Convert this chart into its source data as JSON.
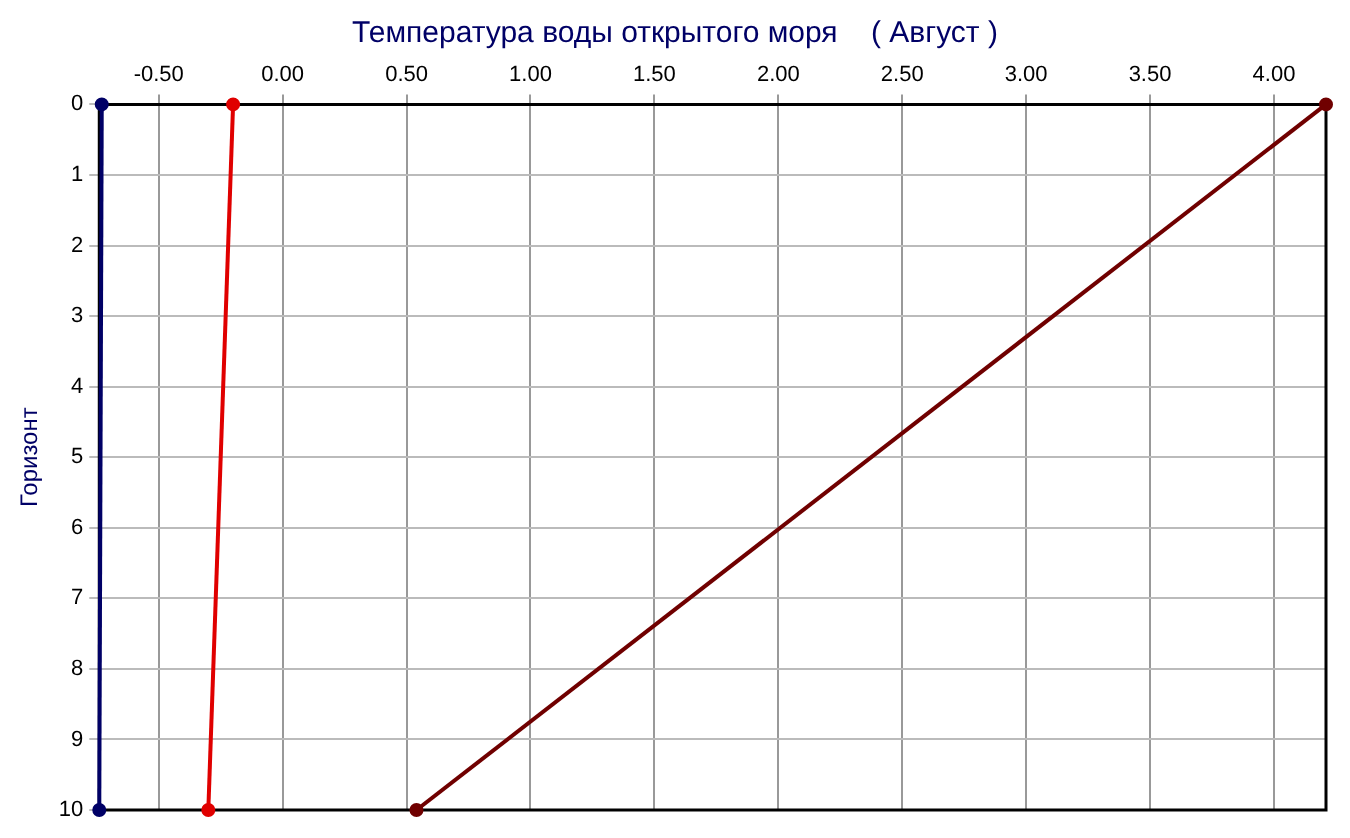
{
  "chart_data": {
    "type": "line",
    "title": "Температура воды открытого моря    ( Август )",
    "ylabel": "Горизонт",
    "series": [
      {
        "color": "#000066",
        "x": [
          -0.73,
          -0.74
        ],
        "values": [
          0,
          10
        ]
      },
      {
        "color": "#e00000",
        "x": [
          -0.2,
          -0.3
        ],
        "values": [
          0,
          10
        ]
      },
      {
        "color": "#700000",
        "x": [
          4.21,
          0.54
        ],
        "values": [
          0,
          10
        ]
      }
    ],
    "xlim": [
      -0.74,
      4.21
    ],
    "xticks": [
      {
        "value": -0.5,
        "label": "-0.50"
      },
      {
        "value": 0,
        "label": "0.00"
      },
      {
        "value": 0.5,
        "label": "0.50"
      },
      {
        "value": 1,
        "label": "1.00"
      },
      {
        "value": 1.5,
        "label": "1.50"
      },
      {
        "value": 2,
        "label": "2.00"
      },
      {
        "value": 2.5,
        "label": "2.50"
      },
      {
        "value": 3,
        "label": "3.00"
      },
      {
        "value": 3.5,
        "label": "3.50"
      },
      {
        "value": 4,
        "label": "4.00"
      }
    ],
    "ylim": [
      10,
      0
    ],
    "yticks": [
      0,
      1,
      2,
      3,
      4,
      5,
      6,
      7,
      8,
      9,
      10
    ],
    "grid": true,
    "legend": false,
    "marker": "circle",
    "line_style": "solid"
  }
}
